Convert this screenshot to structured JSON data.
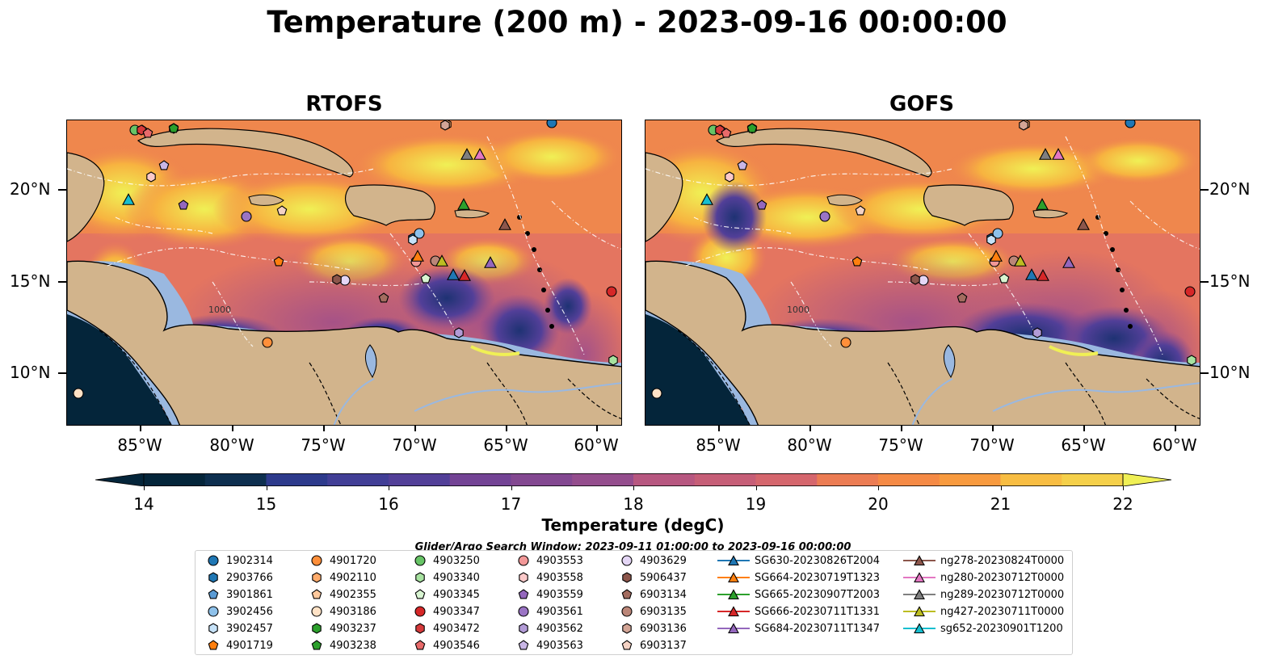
{
  "title": "Temperature (200 m) - 2023-09-16 00:00:00",
  "panels": [
    {
      "title": "RTOFS"
    },
    {
      "title": "GOFS"
    }
  ],
  "axes": {
    "x_ticks": [
      "85°W",
      "80°W",
      "75°W",
      "70°W",
      "65°W",
      "60°W"
    ],
    "y_ticks": [
      "20°N",
      "15°N",
      "10°N"
    ]
  },
  "contour_label": "1000",
  "colorbar": {
    "label": "Temperature (degC)",
    "ticks": [
      "14",
      "15",
      "16",
      "17",
      "18",
      "19",
      "20",
      "21",
      "22"
    ],
    "range": [
      14,
      22
    ],
    "extend": "both"
  },
  "colors": {
    "land": "#d2b48c",
    "shelf": "#9ab8e0",
    "ocean_deep": "#04253a",
    "warm": "#f0f055"
  },
  "search_window": "Glider/Argo Search Window: 2023-09-11 01:00:00 to 2023-09-16 00:00:00",
  "legend": {
    "columns": [
      [
        "1902314",
        "2903766",
        "3901861",
        "3902456",
        "3902457",
        "4901719"
      ],
      [
        "4901720",
        "4902110",
        "4902355",
        "4903186",
        "4903237",
        "4903238"
      ],
      [
        "4903250",
        "4903340",
        "4903345",
        "4903347",
        "4903472",
        "4903546"
      ],
      [
        "4903553",
        "4903558",
        "4903559",
        "4903561",
        "4903562",
        "4903563"
      ],
      [
        "4903629",
        "5906437",
        "6903134",
        "6903135",
        "6903136",
        "6903137"
      ],
      [
        "SG630-20230826T2004",
        "SG664-20230719T1323",
        "SG665-20230907T2003",
        "SG666-20230711T1331",
        "SG684-20230711T1347"
      ],
      [
        "ng278-20230824T0000",
        "ng280-20230712T0000",
        "ng289-20230712T0000",
        "ng427-20230711T0000",
        "sg652-20230901T1200"
      ]
    ]
  }
}
